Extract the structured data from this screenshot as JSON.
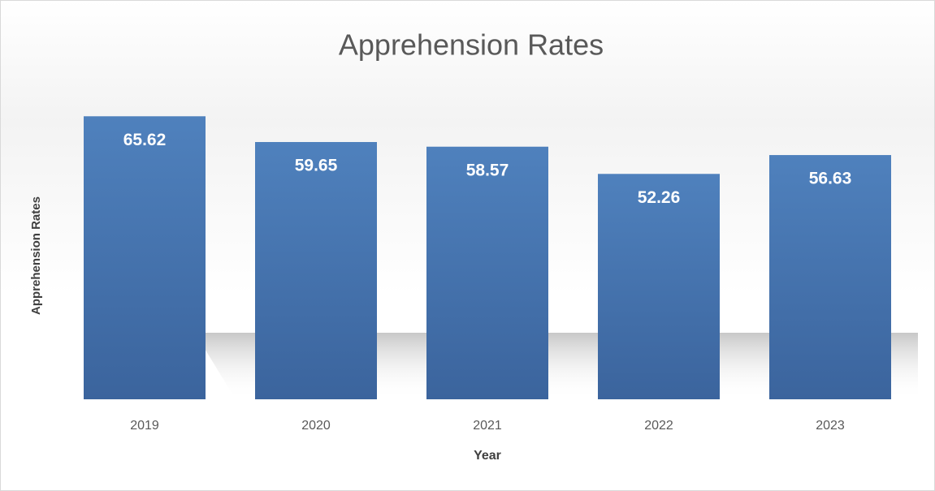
{
  "chart_data": {
    "type": "bar",
    "title": "Apprehension Rates",
    "x_label": "Year",
    "y_label": "Apprehension Rates",
    "categories": [
      "2019",
      "2020",
      "2021",
      "2022",
      "2023"
    ],
    "values": [
      65.62,
      59.65,
      58.57,
      52.26,
      56.63
    ],
    "color": "#4a7bbb",
    "ylim": [
      0,
      70
    ]
  }
}
